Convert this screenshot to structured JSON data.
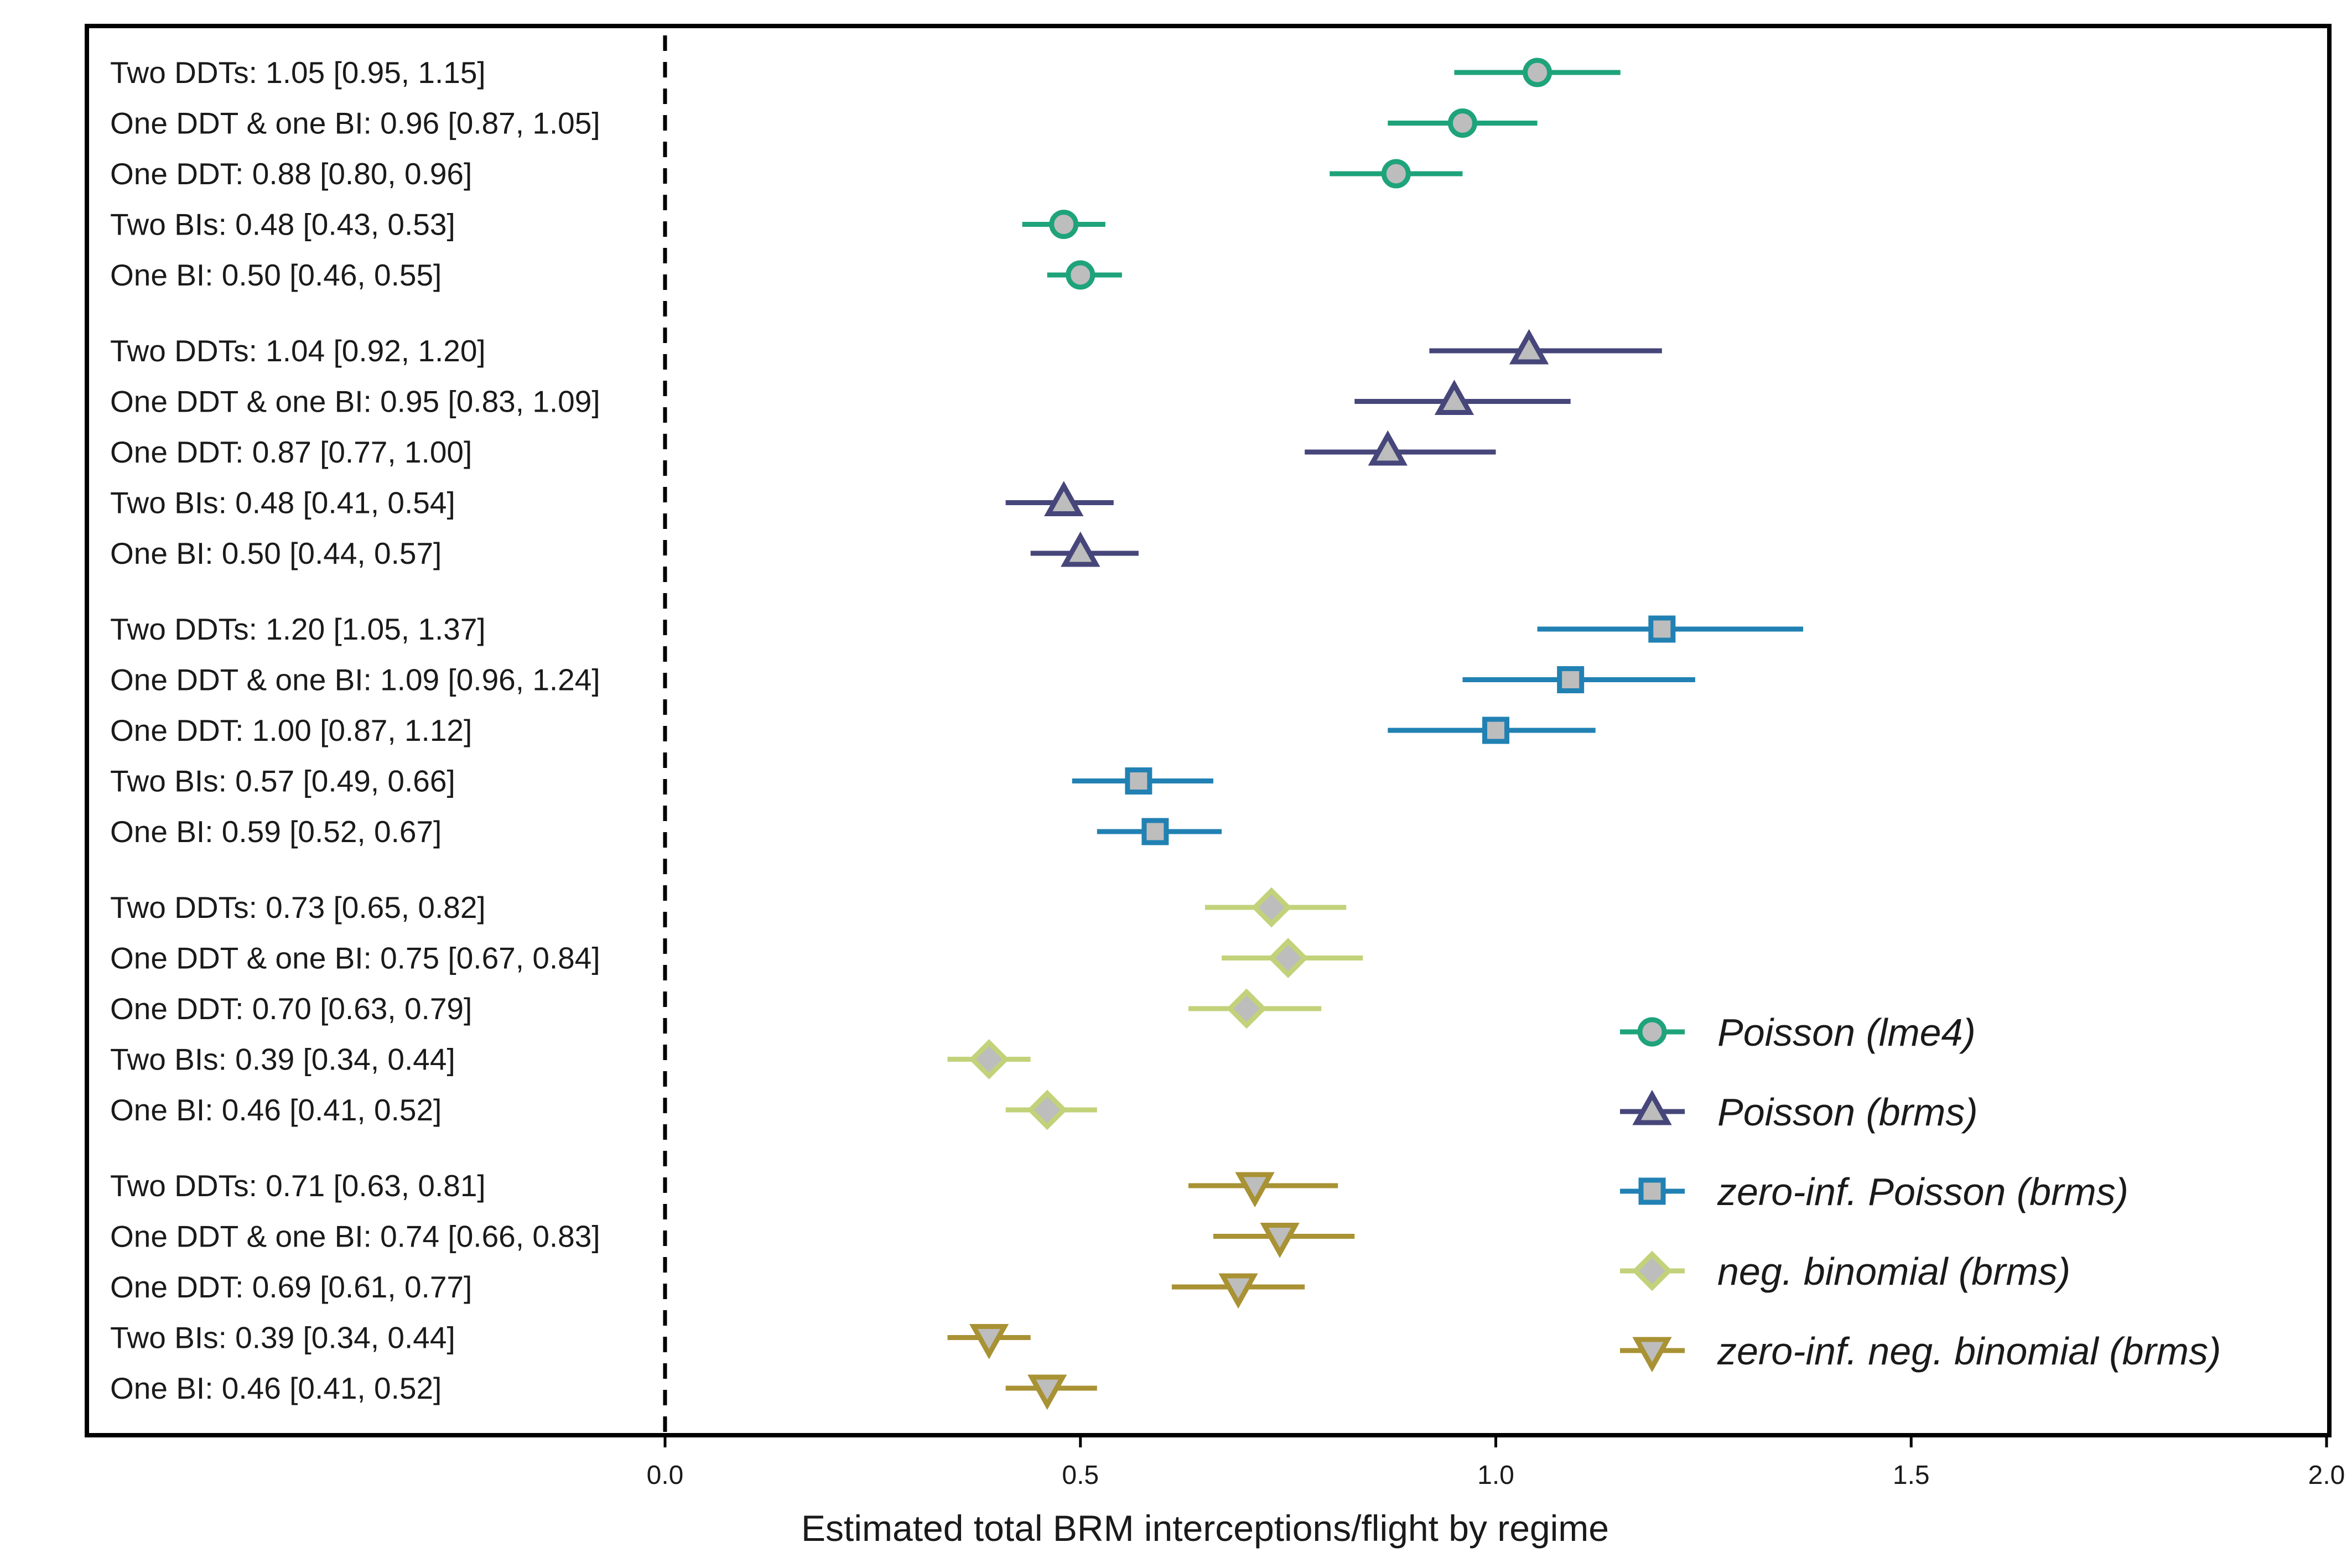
{
  "chart_data": {
    "type": "forest",
    "xlabel": "Estimated total BRM interceptions/flight by regime",
    "xlim": [
      0,
      2
    ],
    "xticks": [
      0,
      0.5,
      1,
      1.5,
      2
    ],
    "xtick_labels": [
      "0.0",
      "0.5",
      "1.0",
      "1.5",
      "2.0"
    ],
    "reference_line": 0,
    "legend_position": "lower-right",
    "series": [
      {
        "name": "Poisson (lme4)",
        "marker": "circle",
        "color": "#1ea37a",
        "rows": [
          {
            "label": "Two DDTs: 1.05 [0.95, 1.15]",
            "est": 1.05,
            "lo": 0.95,
            "hi": 1.15
          },
          {
            "label": "One DDT & one BI: 0.96 [0.87, 1.05]",
            "est": 0.96,
            "lo": 0.87,
            "hi": 1.05
          },
          {
            "label": "One DDT: 0.88 [0.80, 0.96]",
            "est": 0.88,
            "lo": 0.8,
            "hi": 0.96
          },
          {
            "label": "Two BIs: 0.48 [0.43, 0.53]",
            "est": 0.48,
            "lo": 0.43,
            "hi": 0.53
          },
          {
            "label": "One BI: 0.50 [0.46, 0.55]",
            "est": 0.5,
            "lo": 0.46,
            "hi": 0.55
          }
        ]
      },
      {
        "name": "Poisson (brms)",
        "marker": "triangle-up",
        "color": "#46467a",
        "rows": [
          {
            "label": "Two DDTs: 1.04 [0.92, 1.20]",
            "est": 1.04,
            "lo": 0.92,
            "hi": 1.2
          },
          {
            "label": "One DDT & one BI: 0.95 [0.83, 1.09]",
            "est": 0.95,
            "lo": 0.83,
            "hi": 1.09
          },
          {
            "label": "One DDT: 0.87 [0.77, 1.00]",
            "est": 0.87,
            "lo": 0.77,
            "hi": 1.0
          },
          {
            "label": "Two BIs: 0.48 [0.41, 0.54]",
            "est": 0.48,
            "lo": 0.41,
            "hi": 0.54
          },
          {
            "label": "One BI: 0.50 [0.44, 0.57]",
            "est": 0.5,
            "lo": 0.44,
            "hi": 0.57
          }
        ]
      },
      {
        "name": "zero-inf. Poisson (brms)",
        "marker": "square",
        "color": "#2181b3",
        "rows": [
          {
            "label": "Two DDTs: 1.20 [1.05, 1.37]",
            "est": 1.2,
            "lo": 1.05,
            "hi": 1.37
          },
          {
            "label": "One DDT & one BI: 1.09 [0.96, 1.24]",
            "est": 1.09,
            "lo": 0.96,
            "hi": 1.24
          },
          {
            "label": "One DDT: 1.00 [0.87, 1.12]",
            "est": 1.0,
            "lo": 0.87,
            "hi": 1.12
          },
          {
            "label": "Two BIs: 0.57 [0.49, 0.66]",
            "est": 0.57,
            "lo": 0.49,
            "hi": 0.66
          },
          {
            "label": "One BI: 0.59 [0.52, 0.67]",
            "est": 0.59,
            "lo": 0.52,
            "hi": 0.67
          }
        ]
      },
      {
        "name": "neg. binomial (brms)",
        "marker": "diamond",
        "color": "#c2d27a",
        "rows": [
          {
            "label": "Two DDTs: 0.73 [0.65, 0.82]",
            "est": 0.73,
            "lo": 0.65,
            "hi": 0.82
          },
          {
            "label": "One DDT & one BI: 0.75 [0.67, 0.84]",
            "est": 0.75,
            "lo": 0.67,
            "hi": 0.84
          },
          {
            "label": "One DDT: 0.70 [0.63, 0.79]",
            "est": 0.7,
            "lo": 0.63,
            "hi": 0.79
          },
          {
            "label": "Two BIs: 0.39 [0.34, 0.44]",
            "est": 0.39,
            "lo": 0.34,
            "hi": 0.44
          },
          {
            "label": "One BI: 0.46 [0.41, 0.52]",
            "est": 0.46,
            "lo": 0.41,
            "hi": 0.52
          }
        ]
      },
      {
        "name": "zero-inf. neg. binomial (brms)",
        "marker": "triangle-down",
        "color": "#a89234",
        "rows": [
          {
            "label": "Two DDTs: 0.71 [0.63, 0.81]",
            "est": 0.71,
            "lo": 0.63,
            "hi": 0.81
          },
          {
            "label": "One DDT & one BI: 0.74 [0.66, 0.83]",
            "est": 0.74,
            "lo": 0.66,
            "hi": 0.83
          },
          {
            "label": "One DDT: 0.69 [0.61, 0.77]",
            "est": 0.69,
            "lo": 0.61,
            "hi": 0.77
          },
          {
            "label": "Two BIs: 0.39 [0.34, 0.44]",
            "est": 0.39,
            "lo": 0.34,
            "hi": 0.44
          },
          {
            "label": "One BI: 0.46 [0.41, 0.52]",
            "est": 0.46,
            "lo": 0.41,
            "hi": 0.52
          }
        ]
      }
    ],
    "marker_fill": "#bdbdbd"
  }
}
